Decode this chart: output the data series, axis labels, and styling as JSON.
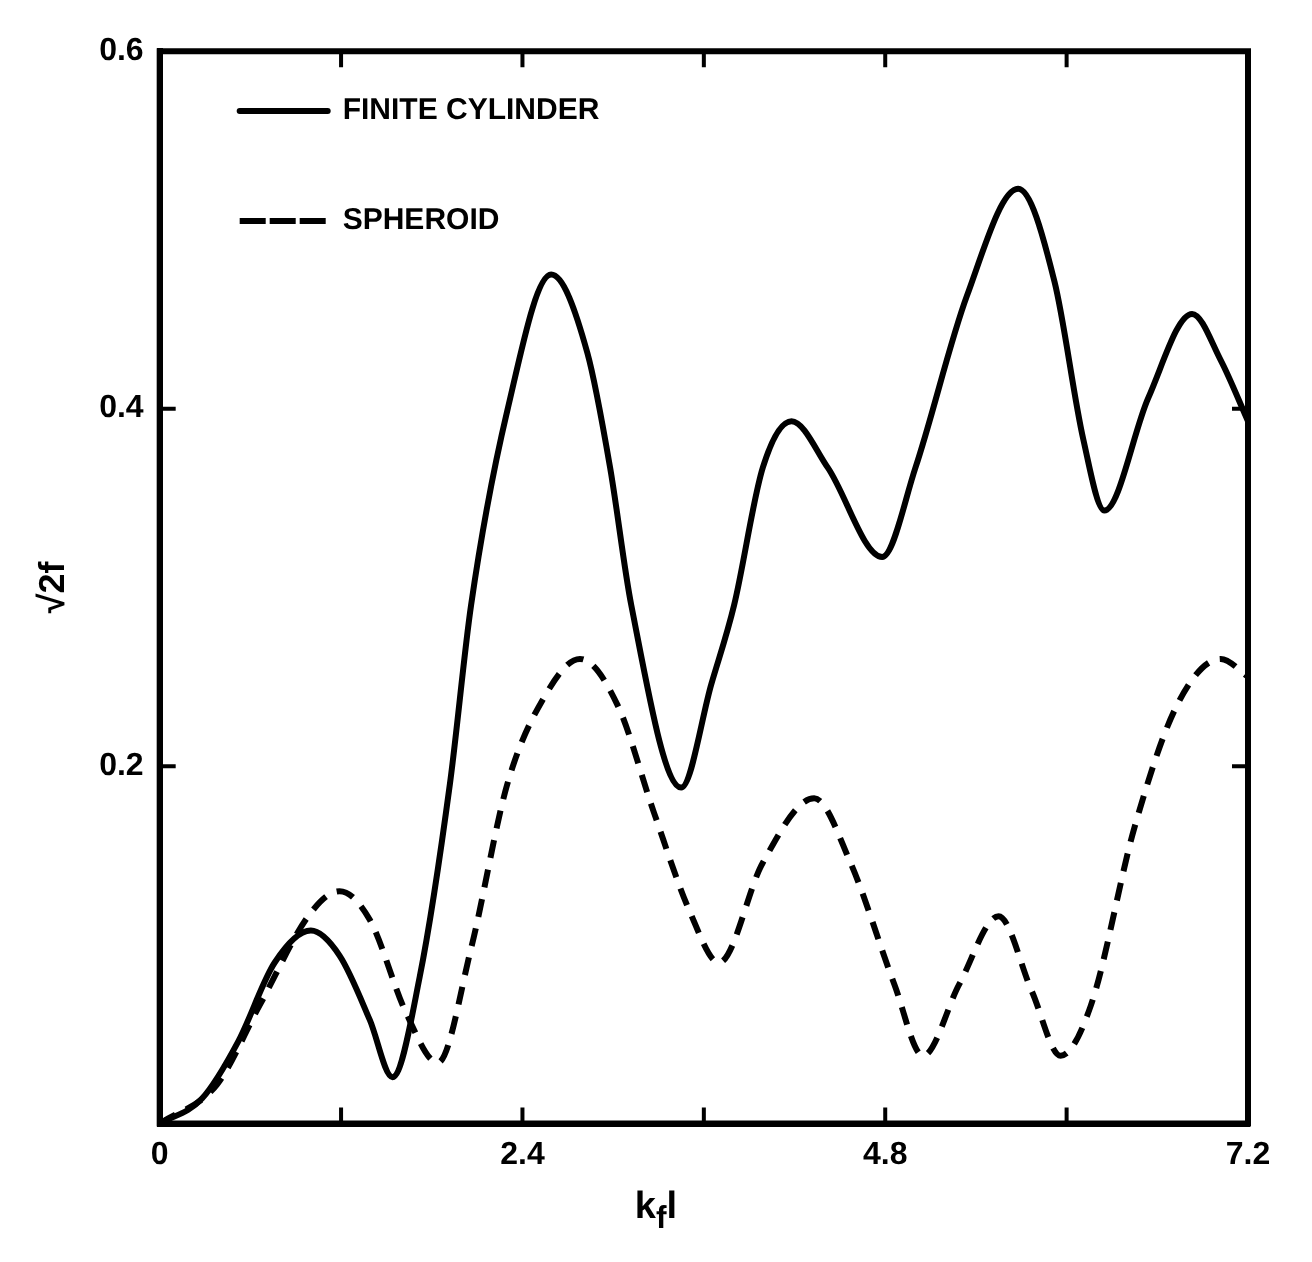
{
  "chart_data": {
    "type": "line",
    "xlabel": "k$_{f}$l",
    "ylabel": "√2f",
    "xlim": [
      0,
      7.2
    ],
    "xticks": [
      0,
      {
        "value": 1.2,
        "label": null
      },
      2.4,
      {
        "value": 3.6,
        "label": null
      },
      4.8,
      {
        "value": 6.0,
        "label": null
      },
      7.2
    ],
    "ylim": [
      0,
      0.6
    ],
    "yticks": [
      {
        "value": 0,
        "label": null
      },
      0.2,
      0.4,
      0.6
    ],
    "grid": false,
    "legend": "top left",
    "marker": "none",
    "series": [
      {
        "name": "FINITE CYLINDER",
        "color": "#000000",
        "line_style": "solid",
        "x": [
          0,
          0.28,
          0.52,
          0.76,
          1.0,
          1.19,
          1.39,
          1.54,
          1.72,
          1.92,
          2.06,
          2.3,
          2.59,
          2.83,
          2.98,
          3.12,
          3.45,
          3.65,
          3.8,
          3.99,
          4.18,
          4.42,
          4.78,
          5.0,
          5.34,
          5.68,
          5.92,
          6.11,
          6.25,
          6.54,
          6.83,
          7.02,
          7.2
        ],
        "values": [
          0,
          0.014,
          0.046,
          0.09,
          0.108,
          0.094,
          0.058,
          0.026,
          0.082,
          0.19,
          0.29,
          0.399,
          0.475,
          0.431,
          0.367,
          0.29,
          0.188,
          0.246,
          0.29,
          0.367,
          0.393,
          0.367,
          0.317,
          0.367,
          0.463,
          0.523,
          0.471,
          0.383,
          0.343,
          0.406,
          0.453,
          0.427,
          0.393
        ]
      },
      {
        "name": "SPHEROID",
        "color": "#000000",
        "line_style": "dashed",
        "x": [
          0,
          0.38,
          0.66,
          1.0,
          1.19,
          1.39,
          1.63,
          1.84,
          2.06,
          2.3,
          2.54,
          2.78,
          3.03,
          3.27,
          3.51,
          3.7,
          3.99,
          4.33,
          4.57,
          4.86,
          5.05,
          5.29,
          5.55,
          5.77,
          5.96,
          6.16,
          6.45,
          6.73,
          7.02,
          7.2
        ],
        "values": [
          0,
          0.022,
          0.066,
          0.118,
          0.13,
          0.114,
          0.062,
          0.034,
          0.098,
          0.19,
          0.238,
          0.26,
          0.234,
          0.174,
          0.118,
          0.09,
          0.146,
          0.182,
          0.146,
          0.078,
          0.038,
          0.078,
          0.116,
          0.074,
          0.038,
          0.066,
          0.166,
          0.234,
          0.26,
          0.25
        ]
      }
    ]
  }
}
